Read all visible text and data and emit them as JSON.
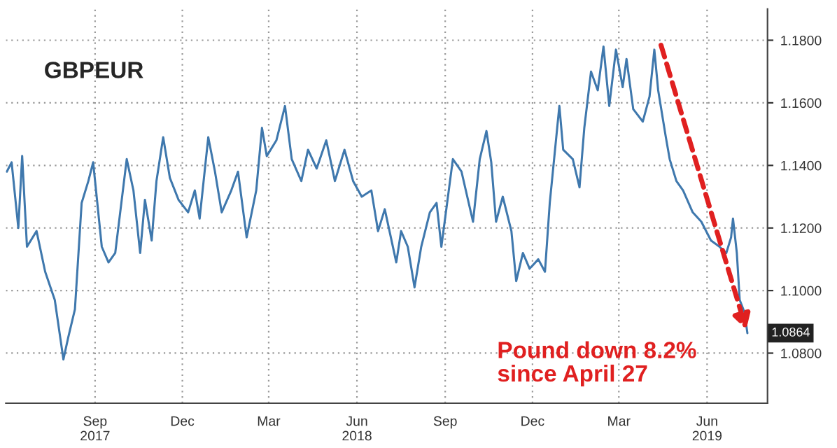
{
  "chart_data": {
    "type": "line",
    "title": "GBPEUR",
    "x": [
      "2017-06-01",
      "2017-06-06",
      "2017-06-13",
      "2017-06-17",
      "2017-06-22",
      "2017-07-02",
      "2017-07-11",
      "2017-07-21",
      "2017-07-30",
      "2017-08-04",
      "2017-08-11",
      "2017-08-18",
      "2017-08-25",
      "2017-08-30",
      "2017-09-08",
      "2017-09-15",
      "2017-09-22",
      "2017-10-04",
      "2017-10-11",
      "2017-10-18",
      "2017-10-23",
      "2017-10-30",
      "2017-11-04",
      "2017-11-11",
      "2017-11-18",
      "2017-11-27",
      "2017-12-07",
      "2017-12-14",
      "2017-12-19",
      "2017-12-28",
      "2018-01-04",
      "2018-01-11",
      "2018-01-21",
      "2018-01-28",
      "2018-02-06",
      "2018-02-16",
      "2018-02-22",
      "2018-02-27",
      "2018-03-09",
      "2018-03-18",
      "2018-03-25",
      "2018-04-04",
      "2018-04-11",
      "2018-04-20",
      "2018-04-30",
      "2018-05-09",
      "2018-05-19",
      "2018-05-28",
      "2018-06-06",
      "2018-06-16",
      "2018-06-23",
      "2018-06-30",
      "2018-07-12",
      "2018-07-17",
      "2018-07-24",
      "2018-07-31",
      "2018-08-07",
      "2018-08-16",
      "2018-08-23",
      "2018-08-28",
      "2018-09-09",
      "2018-09-18",
      "2018-09-30",
      "2018-10-07",
      "2018-10-14",
      "2018-10-19",
      "2018-10-24",
      "2018-10-31",
      "2018-11-09",
      "2018-11-14",
      "2018-11-21",
      "2018-11-28",
      "2018-12-07",
      "2018-12-14",
      "2018-12-19",
      "2018-12-29",
      "2019-01-02",
      "2019-01-12",
      "2019-01-19",
      "2019-01-24",
      "2019-01-31",
      "2019-02-07",
      "2019-02-13",
      "2019-02-19",
      "2019-02-26",
      "2019-03-05",
      "2019-03-09",
      "2019-03-16",
      "2019-03-26",
      "2019-04-02",
      "2019-04-07",
      "2019-04-11",
      "2019-04-19",
      "2019-04-23",
      "2019-04-30",
      "2019-05-07",
      "2019-05-17",
      "2019-05-26",
      "2019-06-05",
      "2019-06-14",
      "2019-06-21",
      "2019-06-26",
      "2019-06-28",
      "2019-07-02",
      "2019-07-05",
      "2019-07-10",
      "2019-07-13"
    ],
    "series": [
      {
        "color": "#3f78ad",
        "values": [
          1.138,
          1.141,
          1.12,
          1.143,
          1.114,
          1.119,
          1.106,
          1.097,
          1.078,
          1.085,
          1.094,
          1.128,
          1.135,
          1.141,
          1.114,
          1.109,
          1.112,
          1.142,
          1.132,
          1.112,
          1.129,
          1.116,
          1.135,
          1.149,
          1.136,
          1.129,
          1.125,
          1.132,
          1.123,
          1.149,
          1.138,
          1.125,
          1.132,
          1.138,
          1.117,
          1.132,
          1.152,
          1.143,
          1.148,
          1.159,
          1.142,
          1.135,
          1.145,
          1.139,
          1.148,
          1.135,
          1.145,
          1.135,
          1.13,
          1.132,
          1.119,
          1.126,
          1.109,
          1.119,
          1.114,
          1.101,
          1.114,
          1.125,
          1.128,
          1.114,
          1.142,
          1.138,
          1.122,
          1.142,
          1.151,
          1.141,
          1.122,
          1.13,
          1.119,
          1.103,
          1.112,
          1.107,
          1.11,
          1.106,
          1.128,
          1.159,
          1.145,
          1.142,
          1.133,
          1.152,
          1.17,
          1.164,
          1.178,
          1.159,
          1.177,
          1.165,
          1.174,
          1.158,
          1.154,
          1.162,
          1.177,
          1.164,
          1.149,
          1.142,
          1.135,
          1.132,
          1.125,
          1.122,
          1.116,
          1.114,
          1.112,
          1.117,
          1.123,
          1.112,
          1.097,
          1.093,
          1.0864
        ]
      }
    ],
    "xlim": [
      "2017-05-31",
      "2019-08-03"
    ],
    "xticks": [
      {
        "value": "2017-09-01",
        "label": "Sep\n2017"
      },
      {
        "value": "2017-12-01",
        "label": "Dec"
      },
      {
        "value": "2018-03-01",
        "label": "Mar"
      },
      {
        "value": "2018-06-01",
        "label": "Jun\n2018"
      },
      {
        "value": "2018-09-01",
        "label": "Sep"
      },
      {
        "value": "2018-12-01",
        "label": "Dec"
      },
      {
        "value": "2019-03-01",
        "label": "Mar"
      },
      {
        "value": "2019-06-01",
        "label": "Jun\n2019"
      }
    ],
    "ylim": [
      1.064,
      1.19
    ],
    "yticks": [
      {
        "value": 1.08,
        "label": "1.0800"
      },
      {
        "value": 1.1,
        "label": "1.1000"
      },
      {
        "value": 1.12,
        "label": "1.1200"
      },
      {
        "value": 1.14,
        "label": "1.1400"
      },
      {
        "value": 1.16,
        "label": "1.1600"
      },
      {
        "value": 1.18,
        "label": "1.1800"
      }
    ],
    "grid": true,
    "marker": "none",
    "line_style": "solid",
    "annotations": [
      {
        "text": "1.0864",
        "x": "2019-07-13",
        "y": 1.0864
      },
      "Pound down 8.2%\nsince April 27"
    ]
  }
}
